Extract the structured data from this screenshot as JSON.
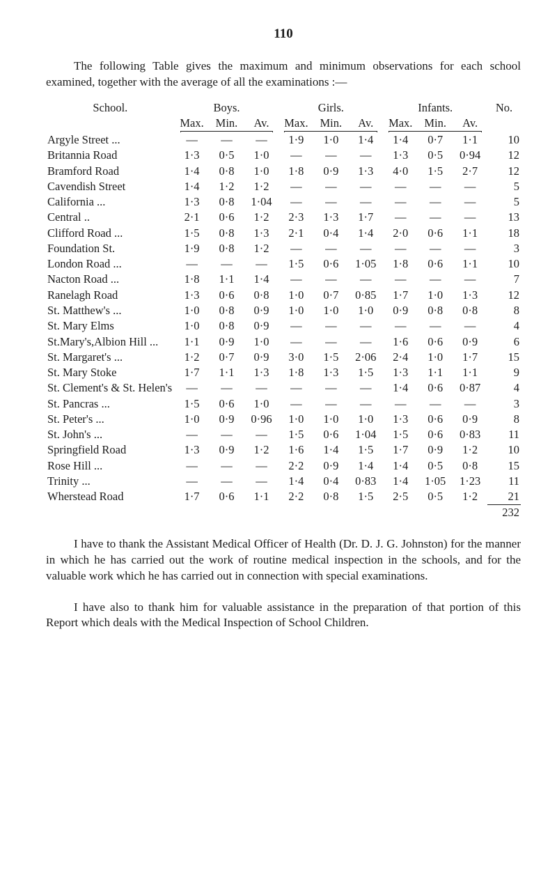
{
  "page_number": "110",
  "intro": "The following Table gives the maximum and minimum observations for each school examined, together with the average of all the examinations :—",
  "headers": {
    "school": "School.",
    "boys": "Boys.",
    "girls": "Girls.",
    "infants": "Infants.",
    "no": "No.",
    "max": "Max.",
    "min": "Min.",
    "av": "Av."
  },
  "rows": [
    {
      "n": "Argyle Street ...",
      "b": [
        "—",
        "—",
        "—"
      ],
      "g": [
        "1·9",
        "1·0",
        "1·4"
      ],
      "i": [
        "1·4",
        "0·7",
        "1·1"
      ],
      "no": "10"
    },
    {
      "n": "Britannia Road",
      "b": [
        "1·3",
        "0·5",
        "1·0"
      ],
      "g": [
        "—",
        "—",
        "—"
      ],
      "i": [
        "1·3",
        "0·5",
        "0·94"
      ],
      "no": "12"
    },
    {
      "n": "Bramford Road",
      "b": [
        "1·4",
        "0·8",
        "1·0"
      ],
      "g": [
        "1·8",
        "0·9",
        "1·3"
      ],
      "i": [
        "4·0",
        "1·5",
        "2·7"
      ],
      "no": "12"
    },
    {
      "n": "Cavendish Street",
      "b": [
        "1·4",
        "1·2",
        "1·2"
      ],
      "g": [
        "—",
        "—",
        "—"
      ],
      "i": [
        "—",
        "—",
        "—"
      ],
      "no": "5"
    },
    {
      "n": "California      ...",
      "b": [
        "1·3",
        "0·8",
        "1·04"
      ],
      "g": [
        "—",
        "—",
        "—"
      ],
      "i": [
        "—",
        "—",
        "—"
      ],
      "no": "5"
    },
    {
      "n": "Central            ..",
      "b": [
        "2·1",
        "0·6",
        "1·2"
      ],
      "g": [
        "2·3",
        "1·3",
        "1·7"
      ],
      "i": [
        "—",
        "—",
        "—"
      ],
      "no": "13"
    },
    {
      "n": "Clifford Road ...",
      "b": [
        "1·5",
        "0·8",
        "1·3"
      ],
      "g": [
        "2·1",
        "0·4",
        "1·4"
      ],
      "i": [
        "2·0",
        "0·6",
        "1·1"
      ],
      "no": "18"
    },
    {
      "n": "Foundation St.",
      "b": [
        "1·9",
        "0·8",
        "1·2"
      ],
      "g": [
        "—",
        "—",
        "—"
      ],
      "i": [
        "—",
        "—",
        "—"
      ],
      "no": "3"
    },
    {
      "n": "London Road ...",
      "b": [
        "—",
        "—",
        "—"
      ],
      "g": [
        "1·5",
        "0·6",
        "1·05"
      ],
      "i": [
        "1·8",
        "0·6",
        "1·1"
      ],
      "no": "10"
    },
    {
      "n": "Nacton Road ...",
      "b": [
        "1·8",
        "1·1",
        "1·4"
      ],
      "g": [
        "—",
        "—",
        "—"
      ],
      "i": [
        "—",
        "—",
        "—"
      ],
      "no": "7"
    },
    {
      "n": "Ranelagh Road",
      "b": [
        "1·3",
        "0·6",
        "0·8"
      ],
      "g": [
        "1·0",
        "0·7",
        "0·85"
      ],
      "i": [
        "1·7",
        "1·0",
        "1·3"
      ],
      "no": "12"
    },
    {
      "n": "St. Matthew's ...",
      "b": [
        "1·0",
        "0·8",
        "0·9"
      ],
      "g": [
        "1·0",
        "1·0",
        "1·0"
      ],
      "i": [
        "0·9",
        "0·8",
        "0·8"
      ],
      "no": "8"
    },
    {
      "n": "St. Mary Elms",
      "b": [
        "1·0",
        "0·8",
        "0·9"
      ],
      "g": [
        "—",
        "—",
        "—"
      ],
      "i": [
        "—",
        "—",
        "—"
      ],
      "no": "4"
    },
    {
      "n": "St.Mary's,Albion Hill           ...",
      "b": [
        "1·1",
        "0·9",
        "1·0"
      ],
      "g": [
        "—",
        "—",
        "—"
      ],
      "i": [
        "1·6",
        "0·6",
        "0·9"
      ],
      "no": "6"
    },
    {
      "n": "St. Margaret's ...",
      "b": [
        "1·2",
        "0·7",
        "0·9"
      ],
      "g": [
        "3·0",
        "1·5",
        "2·06"
      ],
      "i": [
        "2·4",
        "1·0",
        "1·7"
      ],
      "no": "15"
    },
    {
      "n": "St. Mary Stoke",
      "b": [
        "1·7",
        "1·1",
        "1·3"
      ],
      "g": [
        "1·8",
        "1·3",
        "1·5"
      ],
      "i": [
        "1·3",
        "1·1",
        "1·1"
      ],
      "no": "9"
    },
    {
      "n": "St. Clement's & St. Helen's ...",
      "b": [
        "—",
        "—",
        "—"
      ],
      "g": [
        "—",
        "—",
        "—"
      ],
      "i": [
        "1·4",
        "0·6",
        "0·87"
      ],
      "no": "4"
    },
    {
      "n": "St. Pancras    ...",
      "b": [
        "1·5",
        "0·6",
        "1·0"
      ],
      "g": [
        "—",
        "—",
        "—"
      ],
      "i": [
        "—",
        "—",
        "—"
      ],
      "no": "3"
    },
    {
      "n": "St. Peter's      ...",
      "b": [
        "1·0",
        "0·9",
        "0·96"
      ],
      "g": [
        "1·0",
        "1·0",
        "1·0"
      ],
      "i": [
        "1·3",
        "0·6",
        "0·9"
      ],
      "no": "8"
    },
    {
      "n": "St. John's       ...",
      "b": [
        "—",
        "—",
        "—"
      ],
      "g": [
        "1·5",
        "0·6",
        "1·04"
      ],
      "i": [
        "1·5",
        "0·6",
        "0·83"
      ],
      "no": "11"
    },
    {
      "n": "Springfield Road",
      "b": [
        "1·3",
        "0·9",
        "1·2"
      ],
      "g": [
        "1·6",
        "1·4",
        "1·5"
      ],
      "i": [
        "1·7",
        "0·9",
        "1·2"
      ],
      "no": "10"
    },
    {
      "n": "Rose Hill        ...",
      "b": [
        "—",
        "—",
        "—"
      ],
      "g": [
        "2·2",
        "0·9",
        "1·4"
      ],
      "i": [
        "1·4",
        "0·5",
        "0·8"
      ],
      "no": "15"
    },
    {
      "n": "Trinity            ...",
      "b": [
        "—",
        "—",
        "—"
      ],
      "g": [
        "1·4",
        "0·4",
        "0·83"
      ],
      "i": [
        "1·4",
        "1·05",
        "1·23"
      ],
      "no": "11"
    },
    {
      "n": "Wherstead Road",
      "b": [
        "1·7",
        "0·6",
        "1·1"
      ],
      "g": [
        "2·2",
        "0·8",
        "1·5"
      ],
      "i": [
        "2·5",
        "0·5",
        "1·2"
      ],
      "no": "21"
    }
  ],
  "total": "232",
  "para1": "I have to thank the Assistant Medical Officer of Health (Dr. D. J. G. Johnston) for the manner in which he has carried out the work of routine medical inspection in the schools, and for the valuable work which he has carried out in connection with special examinations.",
  "para2": "I have also to thank him for valuable assistance in the preparation of that portion of this Report which deals with the Medical Inspection of School Children."
}
